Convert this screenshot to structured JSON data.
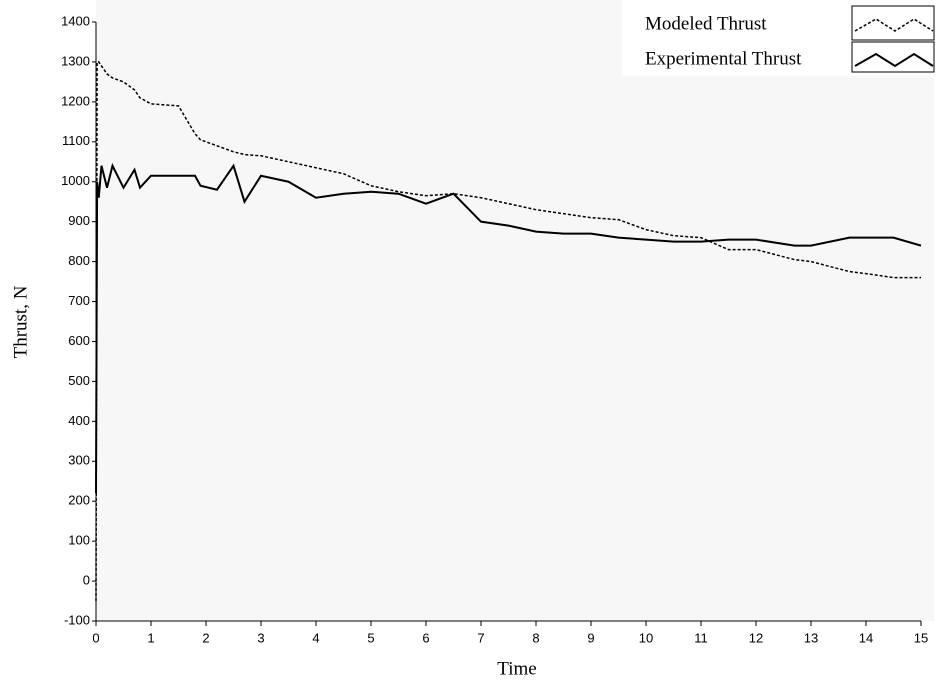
{
  "chart_data": {
    "type": "line",
    "x_label": "Time",
    "y_label": "Thrust, N",
    "x": [
      0,
      0.02,
      0.05,
      0.1,
      0.2,
      0.3,
      0.5,
      0.7,
      0.8,
      1.0,
      1.5,
      1.8,
      1.9,
      2.2,
      2.5,
      2.7,
      3.0,
      3.5,
      4.0,
      4.5,
      5.0,
      5.5,
      6.0,
      6.5,
      7.0,
      7.5,
      8.0,
      8.5,
      9.0,
      9.5,
      10.0,
      10.5,
      11.0,
      11.5,
      12.0,
      12.7,
      13.0,
      13.7,
      14.0,
      14.5,
      15.0
    ],
    "series": [
      {
        "name": "Modeled Thrust",
        "color": "#000000",
        "dash": "dotted",
        "values": [
          -50,
          1300,
          1300,
          1290,
          1270,
          1260,
          1250,
          1230,
          1210,
          1195,
          1190,
          1120,
          1105,
          1090,
          1075,
          1068,
          1065,
          1050,
          1035,
          1020,
          990,
          975,
          965,
          970,
          960,
          945,
          930,
          920,
          910,
          905,
          880,
          865,
          860,
          830,
          830,
          805,
          800,
          775,
          770,
          760,
          760
        ]
      },
      {
        "name": "Experimental Thrust",
        "color": "#000000",
        "dash": "solid",
        "values": [
          220,
          1000,
          960,
          1040,
          985,
          1040,
          985,
          1030,
          985,
          1015,
          1015,
          1015,
          990,
          980,
          1040,
          950,
          1015,
          1000,
          960,
          970,
          975,
          970,
          945,
          970,
          900,
          890,
          875,
          870,
          870,
          860,
          855,
          850,
          850,
          855,
          855,
          840,
          840,
          860,
          860,
          860,
          840
        ]
      }
    ],
    "xlim": [
      0,
      15
    ],
    "xticks": [
      0,
      1,
      2,
      3,
      4,
      5,
      6,
      7,
      8,
      9,
      10,
      11,
      12,
      13,
      14,
      15
    ],
    "ylim": [
      -100,
      1400
    ],
    "yticks": [
      -100,
      0,
      100,
      200,
      300,
      400,
      500,
      600,
      700,
      800,
      900,
      1000,
      1100,
      1200,
      1300,
      1400
    ],
    "legend": "top-right",
    "grid": false
  }
}
